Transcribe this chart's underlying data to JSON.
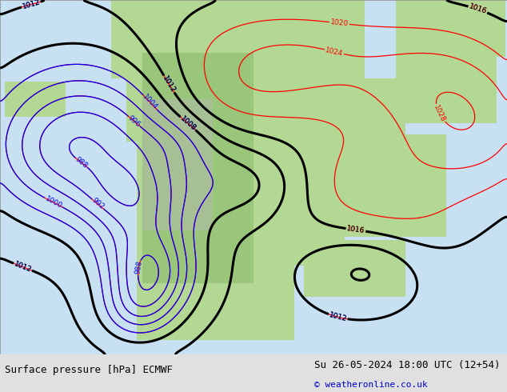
{
  "title_left": "Surface pressure [hPa] ECMWF",
  "title_right": "Su 26-05-2024 18:00 UTC (12+54)",
  "copyright": "© weatheronline.co.uk",
  "ocean_color": [
    0.78,
    0.88,
    0.95
  ],
  "land_green": [
    0.7,
    0.85,
    0.58
  ],
  "land_green2": [
    0.6,
    0.78,
    0.48
  ],
  "land_gray": [
    0.72,
    0.72,
    0.72
  ],
  "footer_color": [
    0.88,
    0.88,
    0.88
  ],
  "figsize": [
    6.34,
    4.9
  ],
  "dpi": 100
}
